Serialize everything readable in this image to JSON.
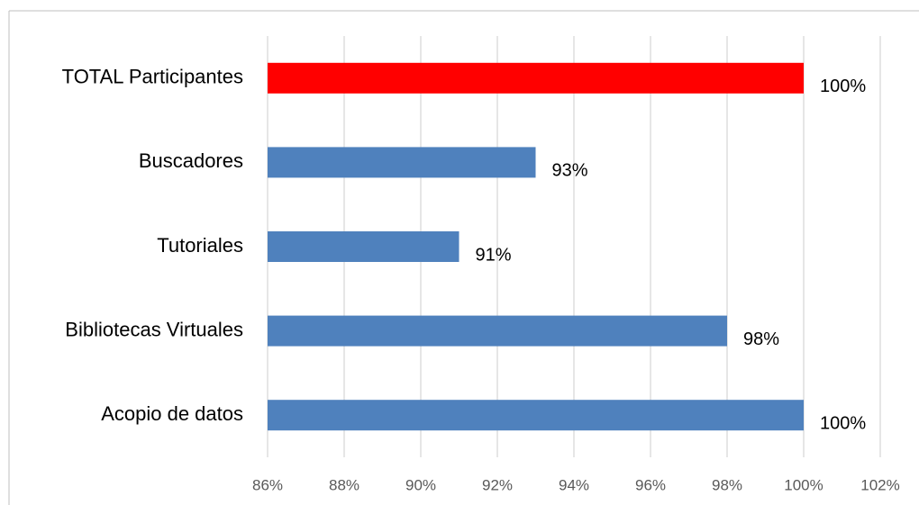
{
  "chart_data": {
    "type": "hbar",
    "categories": [
      "Acopio de datos",
      "Bibliotecas Virtuales",
      "Tutoriales",
      "Buscadores",
      "TOTAL Participantes"
    ],
    "values": [
      100,
      98,
      91,
      93,
      100
    ],
    "value_labels": [
      "100%",
      "98%",
      "91%",
      "93%",
      "100%"
    ],
    "colors": [
      "#4f81bd",
      "#4f81bd",
      "#4f81bd",
      "#4f81bd",
      "#ff0000"
    ],
    "xlim": [
      86,
      102
    ],
    "xticks": [
      {
        "value": 86,
        "label": "86%"
      },
      {
        "value": 88,
        "label": "88%"
      },
      {
        "value": 90,
        "label": "90%"
      },
      {
        "value": 92,
        "label": "92%"
      },
      {
        "value": 94,
        "label": "94%"
      },
      {
        "value": 96,
        "label": "96%"
      },
      {
        "value": 98,
        "label": "98%"
      },
      {
        "value": 100,
        "label": "100%"
      },
      {
        "value": 102,
        "label": "102%"
      }
    ],
    "grid": true
  }
}
